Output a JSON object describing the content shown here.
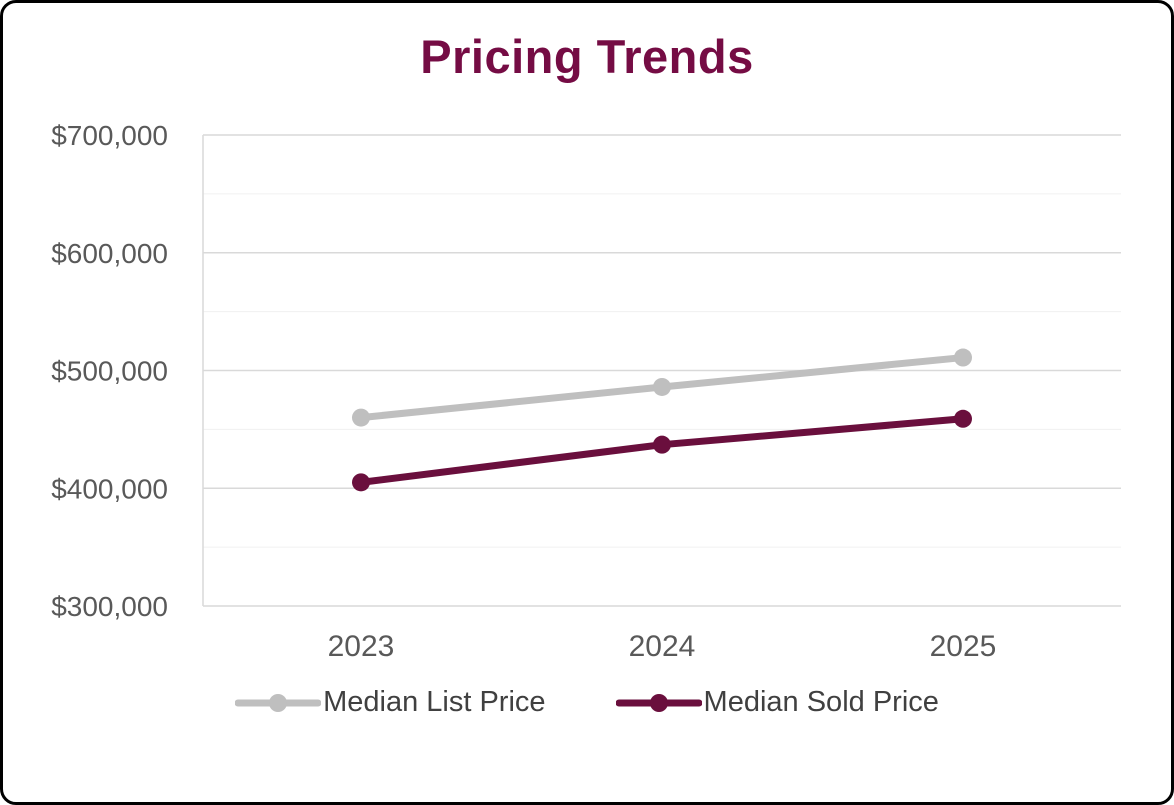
{
  "chart_data": {
    "type": "line",
    "title": "Pricing Trends",
    "categories": [
      "2023",
      "2024",
      "2025"
    ],
    "series": [
      {
        "name": "Median List Price",
        "values": [
          460000,
          486000,
          511000
        ],
        "color": "#BFBFBF"
      },
      {
        "name": "Median Sold Price",
        "values": [
          405000,
          437000,
          459000
        ],
        "color": "#6A0F3D"
      }
    ],
    "ylim": [
      300000,
      700000
    ],
    "y_ticks": [
      {
        "value": 300000,
        "label": "$300,000"
      },
      {
        "value": 400000,
        "label": "$400,000"
      },
      {
        "value": 500000,
        "label": "$500,000"
      },
      {
        "value": 600000,
        "label": "$600,000"
      },
      {
        "value": 700000,
        "label": "$700,000"
      }
    ],
    "y_minor_step": 50000,
    "grid": true,
    "legend_position": "bottom"
  },
  "colors": {
    "title": "#750C44",
    "axis_text": "#595959",
    "legend_text": "#404040",
    "grid_major": "#D9D9D9",
    "grid_minor": "#F0F0F0",
    "series_list": "#BFBFBF",
    "series_sold": "#6A0F3D"
  }
}
